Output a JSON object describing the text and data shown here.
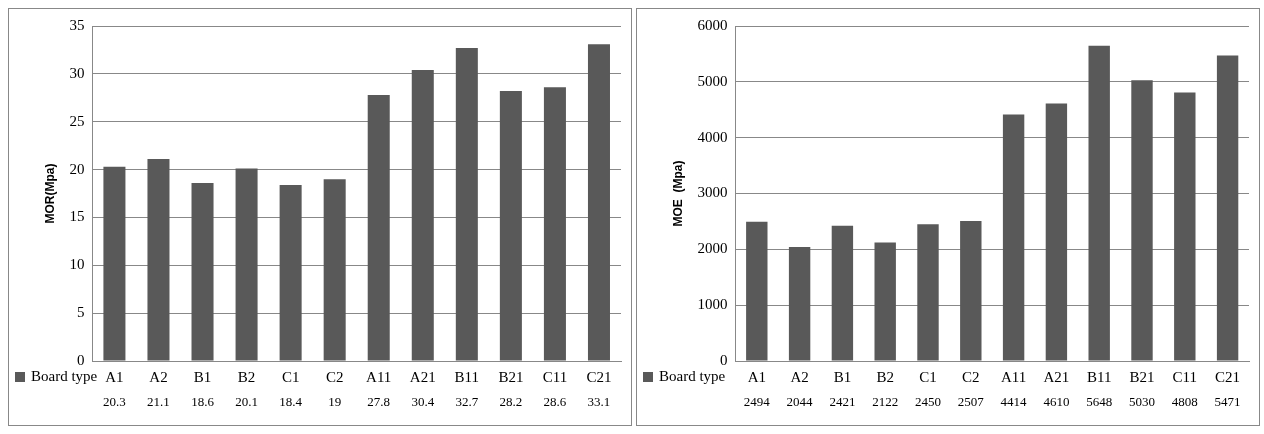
{
  "chart_data": [
    {
      "type": "bar",
      "ylabel": "MOR(Mpa)",
      "categories": [
        "A1",
        "A2",
        "B1",
        "B2",
        "C1",
        "C2",
        "A11",
        "A21",
        "B11",
        "B21",
        "C11",
        "C21"
      ],
      "series": [
        {
          "name": "Board type",
          "color": "#595959",
          "values": [
            20.3,
            21.1,
            18.6,
            20.1,
            18.4,
            19,
            27.8,
            30.4,
            32.7,
            28.2,
            28.6,
            33.1
          ]
        }
      ],
      "ylim": [
        0,
        35
      ],
      "yticks": [
        0,
        5,
        10,
        15,
        20,
        25,
        30,
        35
      ],
      "grid": "y",
      "legend": "bottom left",
      "data_labels": true
    },
    {
      "type": "bar",
      "ylabel": "MOE  (Mpa)",
      "categories": [
        "A1",
        "A2",
        "B1",
        "B2",
        "C1",
        "C2",
        "A11",
        "A21",
        "B11",
        "B21",
        "C11",
        "C21"
      ],
      "series": [
        {
          "name": "Board type",
          "color": "#595959",
          "values": [
            2494,
            2044,
            2421,
            2122,
            2450,
            2507,
            4414,
            4610,
            5648,
            5030,
            4808,
            5471
          ]
        }
      ],
      "ylim": [
        0,
        6000
      ],
      "yticks": [
        0,
        1000,
        2000,
        3000,
        4000,
        5000,
        6000
      ],
      "grid": "y",
      "legend": "bottom left",
      "data_labels": true
    }
  ]
}
